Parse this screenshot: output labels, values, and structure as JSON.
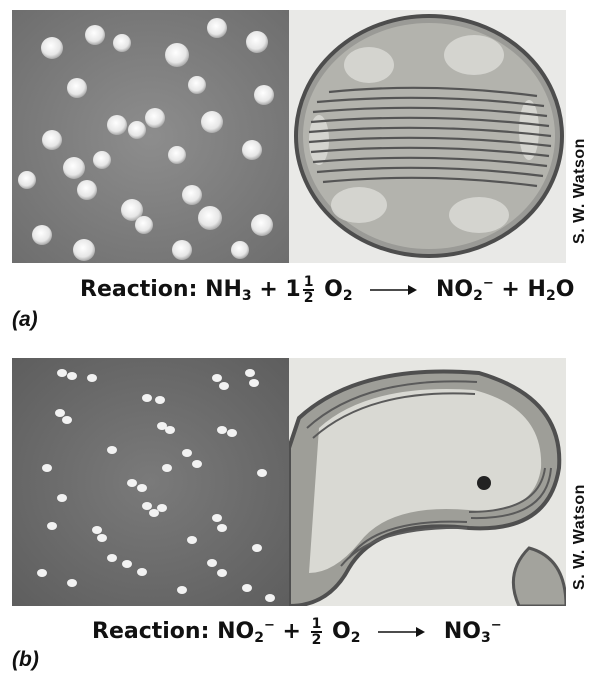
{
  "panel_a": {
    "label": "(a)",
    "credit": "S. W. Watson",
    "reaction": {
      "prefix": "Reaction:",
      "reactant1": "NH",
      "reactant1_sub": "3",
      "plus1": "+",
      "coef_whole": "1",
      "coef_num": "1",
      "coef_den": "2",
      "reactant2": "O",
      "reactant2_sub": "2",
      "product1": "NO",
      "product1_sub": "2",
      "product1_sup": "−",
      "plus2": "+",
      "product2": "H",
      "product2_sub": "2",
      "product2_tail": "O"
    }
  },
  "panel_b": {
    "label": "(b)",
    "credit": "S. W. Watson",
    "reaction": {
      "prefix": "Reaction:",
      "reactant1": "NO",
      "reactant1_sub": "2",
      "reactant1_sup": "−",
      "plus1": "+",
      "coef_num": "1",
      "coef_den": "2",
      "reactant2": "O",
      "reactant2_sub": "2",
      "product1": "NO",
      "product1_sub": "3",
      "product1_sup": "−"
    }
  }
}
